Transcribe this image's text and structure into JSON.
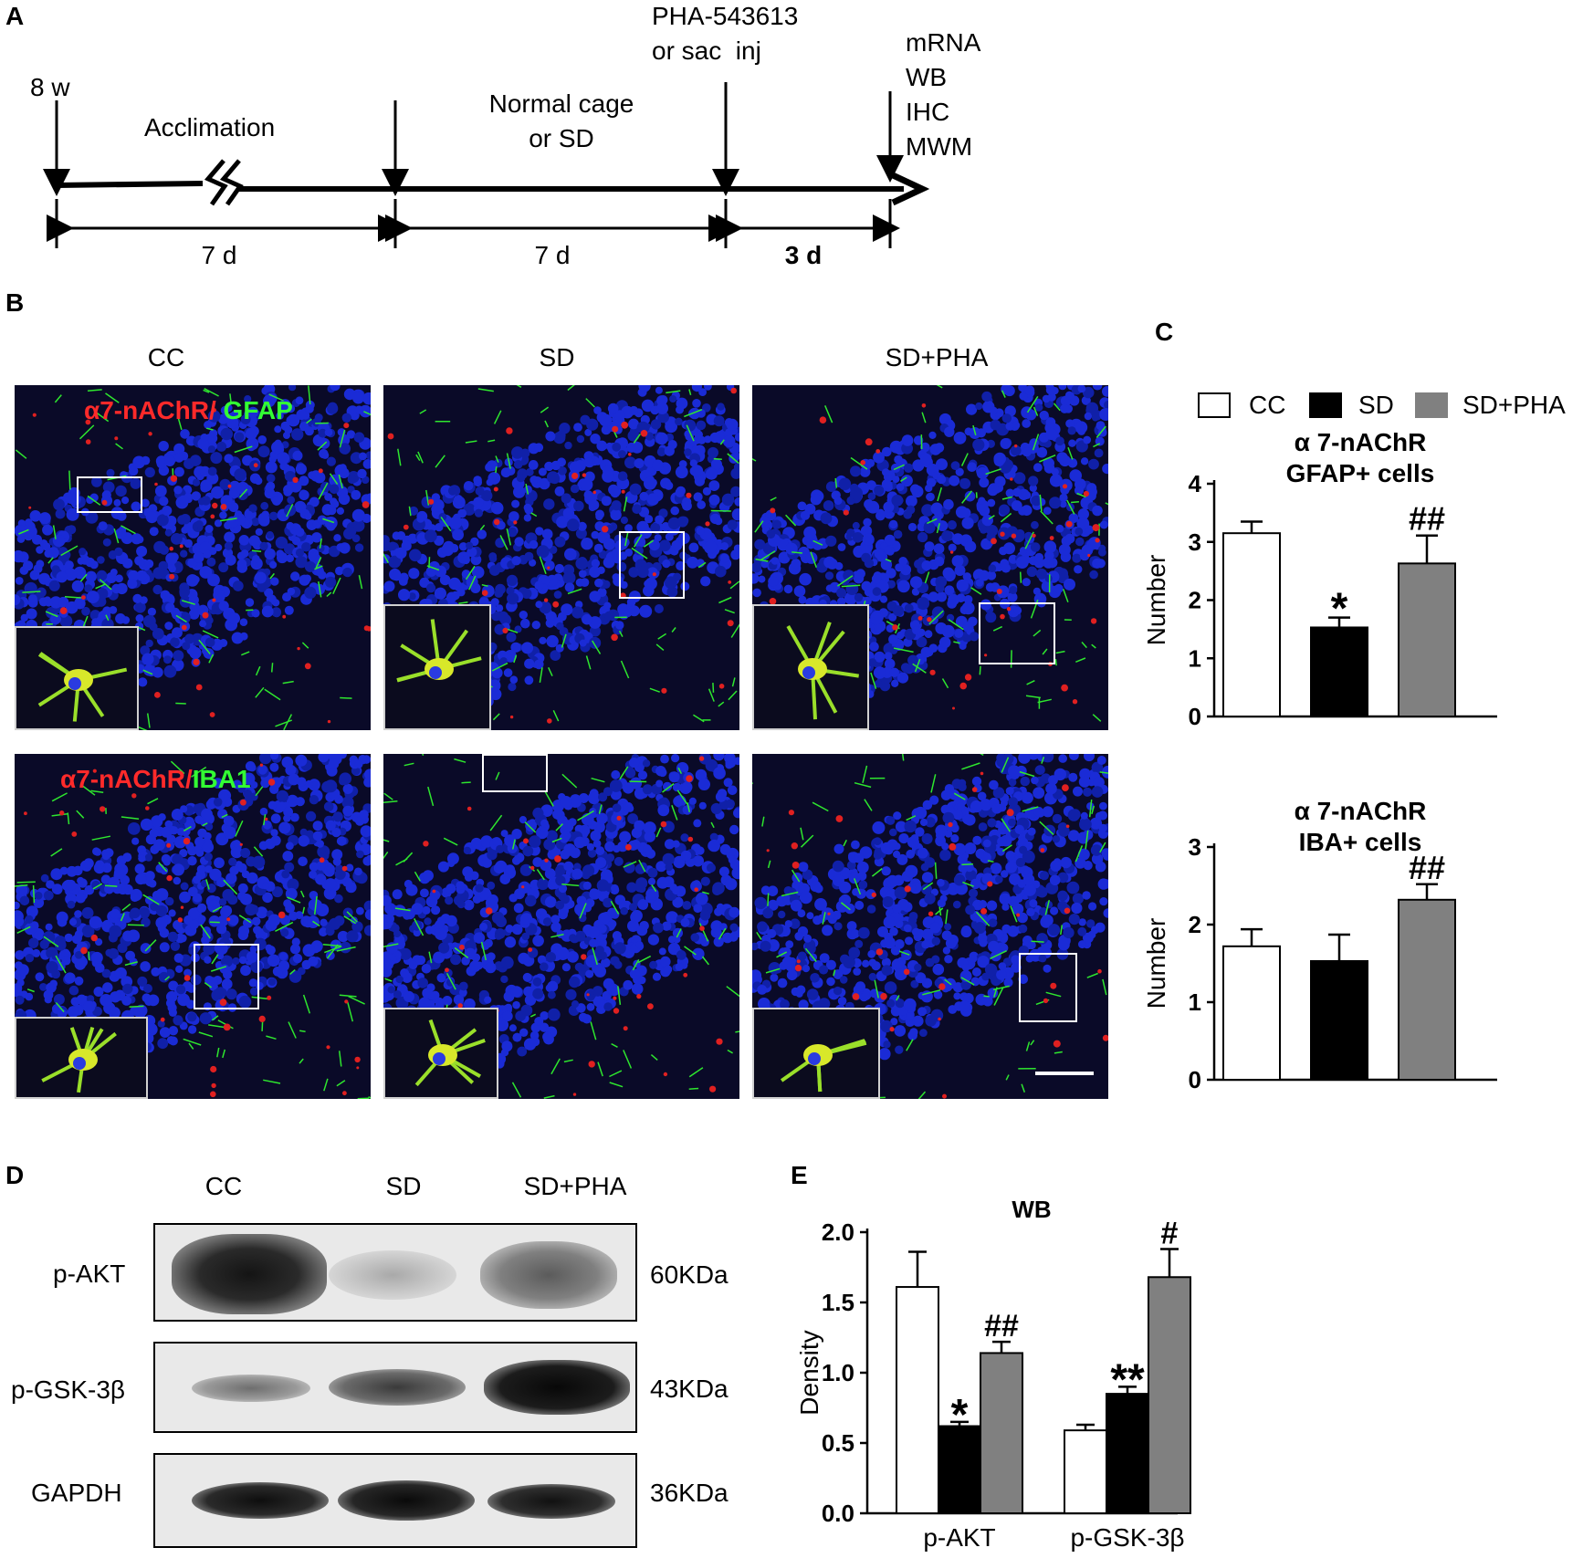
{
  "panels": {
    "A": "A",
    "B": "B",
    "C": "C",
    "D": "D",
    "E": "E"
  },
  "timeline": {
    "start_label": "8 w",
    "acclimation": "Acclimation",
    "phase2_line1": "Normal cage",
    "phase2_line2": "or SD",
    "inj_line1": "PHA-543613",
    "inj_line2": "or sac  inj",
    "outcomes": [
      "mRNA",
      "WB",
      "IHC",
      "MWM"
    ],
    "durations": [
      "7 d",
      "7 d",
      "3 d"
    ]
  },
  "micrographs": {
    "columns": [
      "CC",
      "SD",
      "SD+PHA"
    ],
    "row1_label_red": "α7-nAChR/",
    "row1_label_green": " GFAP",
    "row2_label_red": "α7-nAChR/",
    "row2_label_green": "IBA1"
  },
  "legend": [
    {
      "name": "CC",
      "color": "#ffffff"
    },
    {
      "name": "SD",
      "color": "#000000"
    },
    {
      "name": "SD+PHA",
      "color": "#808080"
    }
  ],
  "chart_data": [
    {
      "type": "bar",
      "title": "α 7-nAChR\nGFAP+ cells",
      "ylabel": "Number",
      "categories": [
        "CC",
        "SD",
        "SD+PHA"
      ],
      "values": [
        3.15,
        1.53,
        2.63
      ],
      "errors": [
        0.2,
        0.17,
        0.48
      ],
      "annotations": [
        "",
        "*",
        "##"
      ],
      "ylim": [
        0,
        4
      ],
      "yticks": [
        "0",
        "1",
        "2",
        "3",
        "4"
      ]
    },
    {
      "type": "bar",
      "title": "α 7-nAChR\nIBA+ cells",
      "ylabel": "Number",
      "categories": [
        "CC",
        "SD",
        "SD+PHA"
      ],
      "values": [
        1.72,
        1.53,
        2.32
      ],
      "errors": [
        0.22,
        0.34,
        0.2
      ],
      "annotations": [
        "",
        "",
        "##"
      ],
      "ylim": [
        0,
        3
      ],
      "yticks": [
        "0",
        "1",
        "2",
        "3"
      ]
    },
    {
      "type": "bar",
      "title": "WB",
      "ylabel": "Density",
      "categories": [
        "p-AKT",
        "p-GSK-3β"
      ],
      "series": [
        {
          "name": "CC",
          "values": [
            1.61,
            0.59
          ],
          "errors": [
            0.25,
            0.04
          ]
        },
        {
          "name": "SD",
          "values": [
            0.62,
            0.85
          ],
          "errors": [
            0.03,
            0.05
          ]
        },
        {
          "name": "SD+PHA",
          "values": [
            1.14,
            1.68
          ],
          "errors": [
            0.08,
            0.2
          ]
        }
      ],
      "annotations": [
        [
          "",
          "*",
          "##"
        ],
        [
          "",
          "**",
          "#"
        ]
      ],
      "ylim": [
        0,
        2.0
      ],
      "yticks": [
        "0.0",
        "0.5",
        "1.0",
        "1.5",
        "2.0"
      ]
    }
  ],
  "western_blot": {
    "columns": [
      "CC",
      "SD",
      "SD+PHA"
    ],
    "rows": [
      {
        "protein": "p-AKT",
        "size": "60KDa"
      },
      {
        "protein": "p-GSK-3β",
        "size": "43KDa"
      },
      {
        "protein": "GAPDH",
        "size": "36KDa"
      }
    ]
  }
}
